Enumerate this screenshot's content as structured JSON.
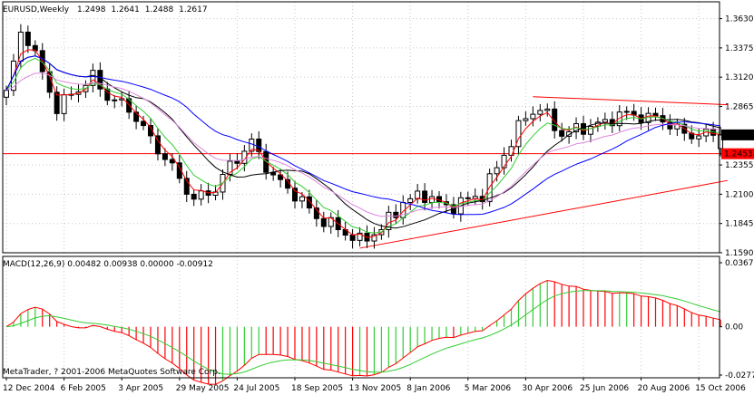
{
  "chart_data": [
    {
      "type": "candlestick",
      "header": {
        "symbol": "EURUSD,Weekly",
        "values": [
          "1.2498",
          "1.2641",
          "1.2488",
          "1.2617"
        ]
      },
      "ylim": [
        1.159,
        1.3745
      ],
      "y_ticks": [
        1.363,
        1.3375,
        1.312,
        1.2865,
        1.2617,
        1.2453,
        1.2355,
        1.21,
        1.1845,
        1.159
      ],
      "y_tick_labels": [
        "1.3630",
        "1.3375",
        "1.3120",
        "1.2865",
        "1.2617",
        "1.2453",
        "1.2355",
        "1.2100",
        "1.1845",
        "1.1590"
      ],
      "x_labels": [
        {
          "week": 0,
          "label": "12 Dec 2004"
        },
        {
          "week": 8,
          "label": "6 Feb 2005"
        },
        {
          "week": 16,
          "label": "3 Apr 2005"
        },
        {
          "week": 24,
          "label": "29 May 2005"
        },
        {
          "week": 32,
          "label": "24 Jul 2005"
        },
        {
          "week": 40,
          "label": "18 Sep 2005"
        },
        {
          "week": 48,
          "label": "13 Nov 2005"
        },
        {
          "week": 56,
          "label": "8 Jan 2006"
        },
        {
          "week": 64,
          "label": "5 Mar 2006"
        },
        {
          "week": 72,
          "label": "30 Apr 2006"
        },
        {
          "week": 80,
          "label": "25 Jun 2006"
        },
        {
          "week": 88,
          "label": "20 Aug 2006"
        },
        {
          "week": 96,
          "label": "15 Oct 2006"
        }
      ],
      "price_markers": [
        {
          "value": 1.2617,
          "label": "1.2617",
          "color": "#000000",
          "text_color": "#ffffff"
        },
        {
          "value": 1.2453,
          "label": "1.2453",
          "color": "#ff0000",
          "text_color": "#ffffff"
        }
      ],
      "horizontal_line": {
        "value": 1.2453,
        "color": "#ff0000"
      },
      "trendlines": [
        {
          "from": {
            "week": 73,
            "value": 1.295
          },
          "to": {
            "week": 100,
            "value": 1.288
          },
          "color": "#ff0000"
        },
        {
          "from": {
            "week": 49,
            "value": 1.163
          },
          "to": {
            "week": 100,
            "value": 1.222
          },
          "color": "#ff0000"
        }
      ],
      "colors": {
        "up": "#ffffff",
        "down": "#000000",
        "ma_fast": "#ff0000",
        "ma_green": "#33cc33",
        "ma_black": "#000000",
        "ma_violet": "#dd88dd",
        "ma_blue": "#0000ff"
      },
      "anchors": [
        [
          0,
          1.298
        ],
        [
          2,
          1.35
        ],
        [
          3,
          1.346
        ],
        [
          6,
          1.3
        ],
        [
          7,
          1.285
        ],
        [
          9,
          1.297
        ],
        [
          12,
          1.312
        ],
        [
          14,
          1.295
        ],
        [
          17,
          1.285
        ],
        [
          20,
          1.258
        ],
        [
          23,
          1.233
        ],
        [
          26,
          1.205
        ],
        [
          29,
          1.215
        ],
        [
          31,
          1.235
        ],
        [
          34,
          1.255
        ],
        [
          37,
          1.225
        ],
        [
          40,
          1.21
        ],
        [
          43,
          1.19
        ],
        [
          46,
          1.18
        ],
        [
          49,
          1.169
        ],
        [
          52,
          1.18
        ],
        [
          55,
          1.203
        ],
        [
          58,
          1.21
        ],
        [
          61,
          1.198
        ],
        [
          64,
          1.205
        ],
        [
          66,
          1.21
        ],
        [
          69,
          1.245
        ],
        [
          72,
          1.278
        ],
        [
          74,
          1.285
        ],
        [
          77,
          1.262
        ],
        [
          80,
          1.268
        ],
        [
          83,
          1.272
        ],
        [
          85,
          1.28
        ],
        [
          88,
          1.278
        ],
        [
          91,
          1.275
        ],
        [
          94,
          1.262
        ],
        [
          96,
          1.262
        ]
      ]
    },
    {
      "type": "macd",
      "label": "MACD(12,26,9) 0.00482 0.00938 0.00000 -0.00912",
      "ylim": [
        -0.0277,
        0.0367
      ],
      "y_ticks": [
        0.0367,
        0.0,
        -0.0277
      ],
      "y_tick_labels": [
        "0.0367",
        "0.00",
        "-0.0277"
      ],
      "colors": {
        "hist_up": "#33cc33",
        "hist_down": "#ff0000",
        "main": "#ff0000",
        "signal": "#33cc33"
      }
    }
  ],
  "footer": {
    "text": "MetaTrader, ? 2001-2006 MetaQuotes Software Corp."
  }
}
